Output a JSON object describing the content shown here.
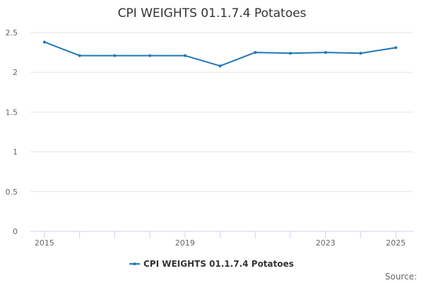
{
  "chart_data": {
    "type": "line",
    "title": "CPI WEIGHTS 01.1.7.4 Potatoes",
    "x": [
      2015,
      2016,
      2017,
      2018,
      2019,
      2020,
      2021,
      2022,
      2023,
      2024,
      2025
    ],
    "xticks": [
      2015,
      2019,
      2023,
      2025
    ],
    "xlim": [
      2014.6,
      2025.5
    ],
    "yticks": [
      0,
      0.5,
      1,
      1.5,
      2,
      2.5
    ],
    "ylim": [
      0,
      2.5
    ],
    "grid": true,
    "legend": "bottom-center",
    "series": [
      {
        "name": "CPI WEIGHTS 01.1.7.4 Potatoes",
        "color": "#1f78b4",
        "values": [
          2.38,
          2.21,
          2.21,
          2.21,
          2.21,
          2.08,
          2.25,
          2.24,
          2.25,
          2.24,
          2.31
        ]
      }
    ],
    "source_label": "Source:"
  }
}
